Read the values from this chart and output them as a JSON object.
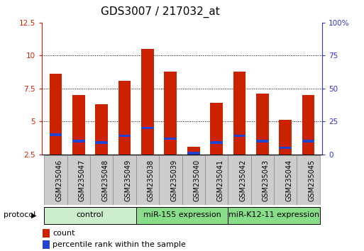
{
  "title": "GDS3007 / 217032_at",
  "samples": [
    "GSM235046",
    "GSM235047",
    "GSM235048",
    "GSM235049",
    "GSM235038",
    "GSM235039",
    "GSM235040",
    "GSM235041",
    "GSM235042",
    "GSM235043",
    "GSM235044",
    "GSM235045"
  ],
  "count_values": [
    8.6,
    7.0,
    6.3,
    8.1,
    10.5,
    8.8,
    3.1,
    6.4,
    8.8,
    7.1,
    5.1,
    7.0
  ],
  "percentile_values": [
    4.0,
    3.5,
    3.4,
    3.9,
    4.5,
    3.7,
    2.6,
    3.4,
    3.9,
    3.5,
    3.0,
    3.5
  ],
  "percentile_blue_height": [
    0.18,
    0.18,
    0.18,
    0.18,
    0.18,
    0.18,
    0.18,
    0.18,
    0.18,
    0.18,
    0.18,
    0.18
  ],
  "bar_color": "#cc2200",
  "blue_color": "#2244cc",
  "ylim_left": [
    2.5,
    12.5
  ],
  "ylim_right": [
    0,
    100
  ],
  "yticks_left": [
    2.5,
    5.0,
    7.5,
    10.0,
    12.5
  ],
  "yticks_right": [
    0,
    25,
    50,
    75,
    100
  ],
  "ytick_labels_left": [
    "2.5",
    "5",
    "7.5",
    "10",
    "12.5"
  ],
  "ytick_labels_right": [
    "0",
    "25",
    "50",
    "75",
    "100%"
  ],
  "group_boundaries": [
    {
      "start": 0,
      "end": 4,
      "label": "control",
      "color": "#cceecc"
    },
    {
      "start": 4,
      "end": 8,
      "label": "miR-155 expression",
      "color": "#88dd88"
    },
    {
      "start": 8,
      "end": 12,
      "label": "miR-K12-11 expression",
      "color": "#88dd88"
    }
  ],
  "protocol_label": "protocol",
  "legend_count": "count",
  "legend_percentile": "percentile rank within the sample",
  "bar_width": 0.55,
  "title_fontsize": 11,
  "tick_fontsize": 7.5,
  "label_fontsize": 8,
  "group_label_fontsize": 8,
  "bg_color": "#ffffff",
  "plot_bg": "#ffffff",
  "left_tick_color": "#cc2200",
  "right_tick_color": "#3333cc",
  "sample_box_color": "#cccccc",
  "sample_box_edge": "#888888"
}
